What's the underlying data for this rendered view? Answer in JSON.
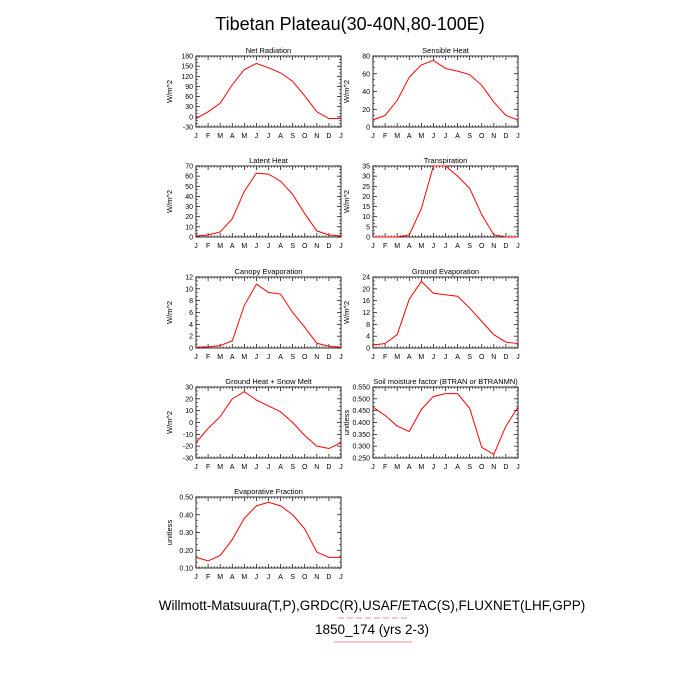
{
  "figure": {
    "title": "Tibetan Plateau(30-40N,80-100E)",
    "footer_line1": "Willmott-Matsuura(T,P),GRDC(R),USAF/ETAC(S),FLUXNET(LHF,GPP)",
    "footer_line2": "1850_174 (yrs 2-3)"
  },
  "colors": {
    "line": "#ff0000",
    "axis": "#000000",
    "footer_underline": "#ff8888"
  },
  "months": [
    "J",
    "F",
    "M",
    "A",
    "M",
    "J",
    "J",
    "A",
    "S",
    "O",
    "N",
    "D",
    "J"
  ],
  "chart_data": [
    {
      "type": "line",
      "title": "Net Radiation",
      "ylabel": "W/m^2",
      "x": [
        "J",
        "F",
        "M",
        "A",
        "M",
        "J",
        "J",
        "A",
        "S",
        "O",
        "N",
        "D",
        "J"
      ],
      "ylim": [
        -30,
        180
      ],
      "yticks": [
        -30,
        0,
        30,
        60,
        90,
        120,
        150,
        180
      ],
      "ytick_labels": [
        "-30",
        "0",
        "30",
        "60",
        "90",
        "120",
        "150",
        "180"
      ],
      "values": [
        -5,
        15,
        40,
        95,
        140,
        158,
        145,
        130,
        105,
        62,
        15,
        -5,
        -5
      ]
    },
    {
      "type": "line",
      "title": "Sensible Heat",
      "ylabel": "W/m^2",
      "x": [
        "J",
        "F",
        "M",
        "A",
        "M",
        "J",
        "J",
        "A",
        "S",
        "O",
        "N",
        "D",
        "J"
      ],
      "ylim": [
        0,
        80
      ],
      "yticks": [
        0,
        20,
        40,
        60,
        80
      ],
      "ytick_labels": [
        "0",
        "20",
        "40",
        "60",
        "80"
      ],
      "values": [
        8,
        13,
        30,
        56,
        70,
        75,
        66,
        63,
        59,
        47,
        28,
        13,
        8
      ]
    },
    {
      "type": "line",
      "title": "Latent Heat",
      "ylabel": "W/m^2",
      "x": [
        "J",
        "F",
        "M",
        "A",
        "M",
        "J",
        "J",
        "A",
        "S",
        "O",
        "N",
        "D",
        "J"
      ],
      "ylim": [
        0,
        70
      ],
      "yticks": [
        0,
        10,
        20,
        30,
        40,
        50,
        60,
        70
      ],
      "ytick_labels": [
        "0",
        "10",
        "20",
        "30",
        "40",
        "50",
        "60",
        "70"
      ],
      "values": [
        1,
        2,
        5,
        18,
        45,
        63,
        62,
        55,
        42,
        23,
        6,
        2,
        1
      ]
    },
    {
      "type": "line",
      "title": "Transpiration",
      "ylabel": "W/m^2",
      "x": [
        "J",
        "F",
        "M",
        "A",
        "M",
        "J",
        "J",
        "A",
        "S",
        "O",
        "N",
        "D",
        "J"
      ],
      "ylim": [
        0,
        35
      ],
      "yticks": [
        0,
        5,
        10,
        15,
        20,
        25,
        30,
        35
      ],
      "ytick_labels": [
        "0",
        "5",
        "10",
        "15",
        "20",
        "25",
        "30",
        "35"
      ],
      "values": [
        0,
        0,
        0,
        1,
        14,
        35,
        35,
        30,
        24,
        11,
        1,
        0,
        0
      ]
    },
    {
      "type": "line",
      "title": "Canopy Evaporation",
      "ylabel": "W/m^2",
      "x": [
        "J",
        "F",
        "M",
        "A",
        "M",
        "J",
        "J",
        "A",
        "S",
        "O",
        "N",
        "D",
        "J"
      ],
      "ylim": [
        0,
        12
      ],
      "yticks": [
        0,
        2,
        4,
        6,
        8,
        10,
        12
      ],
      "ytick_labels": [
        "0",
        "2",
        "4",
        "6",
        "8",
        "10",
        "12"
      ],
      "values": [
        0.1,
        0.2,
        0.4,
        1.2,
        7.2,
        10.8,
        9.4,
        9.1,
        6.0,
        3.5,
        0.8,
        0.3,
        0.1
      ]
    },
    {
      "type": "line",
      "title": "Ground Evaporation",
      "ylabel": "W/m^2",
      "x": [
        "J",
        "F",
        "M",
        "A",
        "M",
        "J",
        "J",
        "A",
        "S",
        "O",
        "N",
        "D",
        "J"
      ],
      "ylim": [
        0,
        24
      ],
      "yticks": [
        0,
        4,
        8,
        12,
        16,
        20,
        24
      ],
      "ytick_labels": [
        "0",
        "4",
        "8",
        "12",
        "16",
        "20",
        "24"
      ],
      "values": [
        1,
        1.5,
        4.5,
        16.5,
        22.5,
        18.5,
        18,
        17.5,
        13.5,
        9,
        4.5,
        2,
        1.5
      ]
    },
    {
      "type": "line",
      "title": "Ground Heat + Snow Melt",
      "ylabel": "W/m^2",
      "x": [
        "J",
        "F",
        "M",
        "A",
        "M",
        "J",
        "J",
        "A",
        "S",
        "O",
        "N",
        "D",
        "J"
      ],
      "ylim": [
        -30,
        30
      ],
      "yticks": [
        -30,
        -20,
        -10,
        0,
        10,
        20,
        30
      ],
      "ytick_labels": [
        "-30",
        "-20",
        "-10",
        "0",
        "10",
        "20",
        "30"
      ],
      "values": [
        -17,
        -5,
        5,
        20,
        26,
        19,
        14,
        9,
        0,
        -11,
        -20,
        -22,
        -17
      ]
    },
    {
      "type": "line",
      "title": "Soil moisture factor (BTRAN or BTRANMN)",
      "ylabel": "unitless",
      "x": [
        "J",
        "F",
        "M",
        "A",
        "M",
        "J",
        "J",
        "A",
        "S",
        "O",
        "N",
        "D",
        "J"
      ],
      "ylim": [
        0.25,
        0.55
      ],
      "yticks": [
        0.25,
        0.3,
        0.35,
        0.4,
        0.45,
        0.5,
        0.55
      ],
      "ytick_labels": [
        "0.250",
        "0.300",
        "0.350",
        "0.400",
        "0.450",
        "0.500",
        "0.550"
      ],
      "values": [
        0.465,
        0.43,
        0.385,
        0.362,
        0.455,
        0.51,
        0.522,
        0.522,
        0.46,
        0.295,
        0.265,
        0.385,
        0.465
      ]
    },
    {
      "type": "line",
      "title": "Evaporative Fraction",
      "ylabel": "unitless",
      "x": [
        "J",
        "F",
        "M",
        "A",
        "M",
        "J",
        "J",
        "A",
        "S",
        "O",
        "N",
        "D",
        "J"
      ],
      "ylim": [
        0.1,
        0.5
      ],
      "yticks": [
        0.1,
        0.2,
        0.3,
        0.4,
        0.5
      ],
      "ytick_labels": [
        "0.10",
        "0.20",
        "0.30",
        "0.40",
        "0.50"
      ],
      "values": [
        0.16,
        0.14,
        0.17,
        0.26,
        0.38,
        0.45,
        0.47,
        0.45,
        0.4,
        0.32,
        0.19,
        0.16,
        0.16
      ]
    }
  ]
}
